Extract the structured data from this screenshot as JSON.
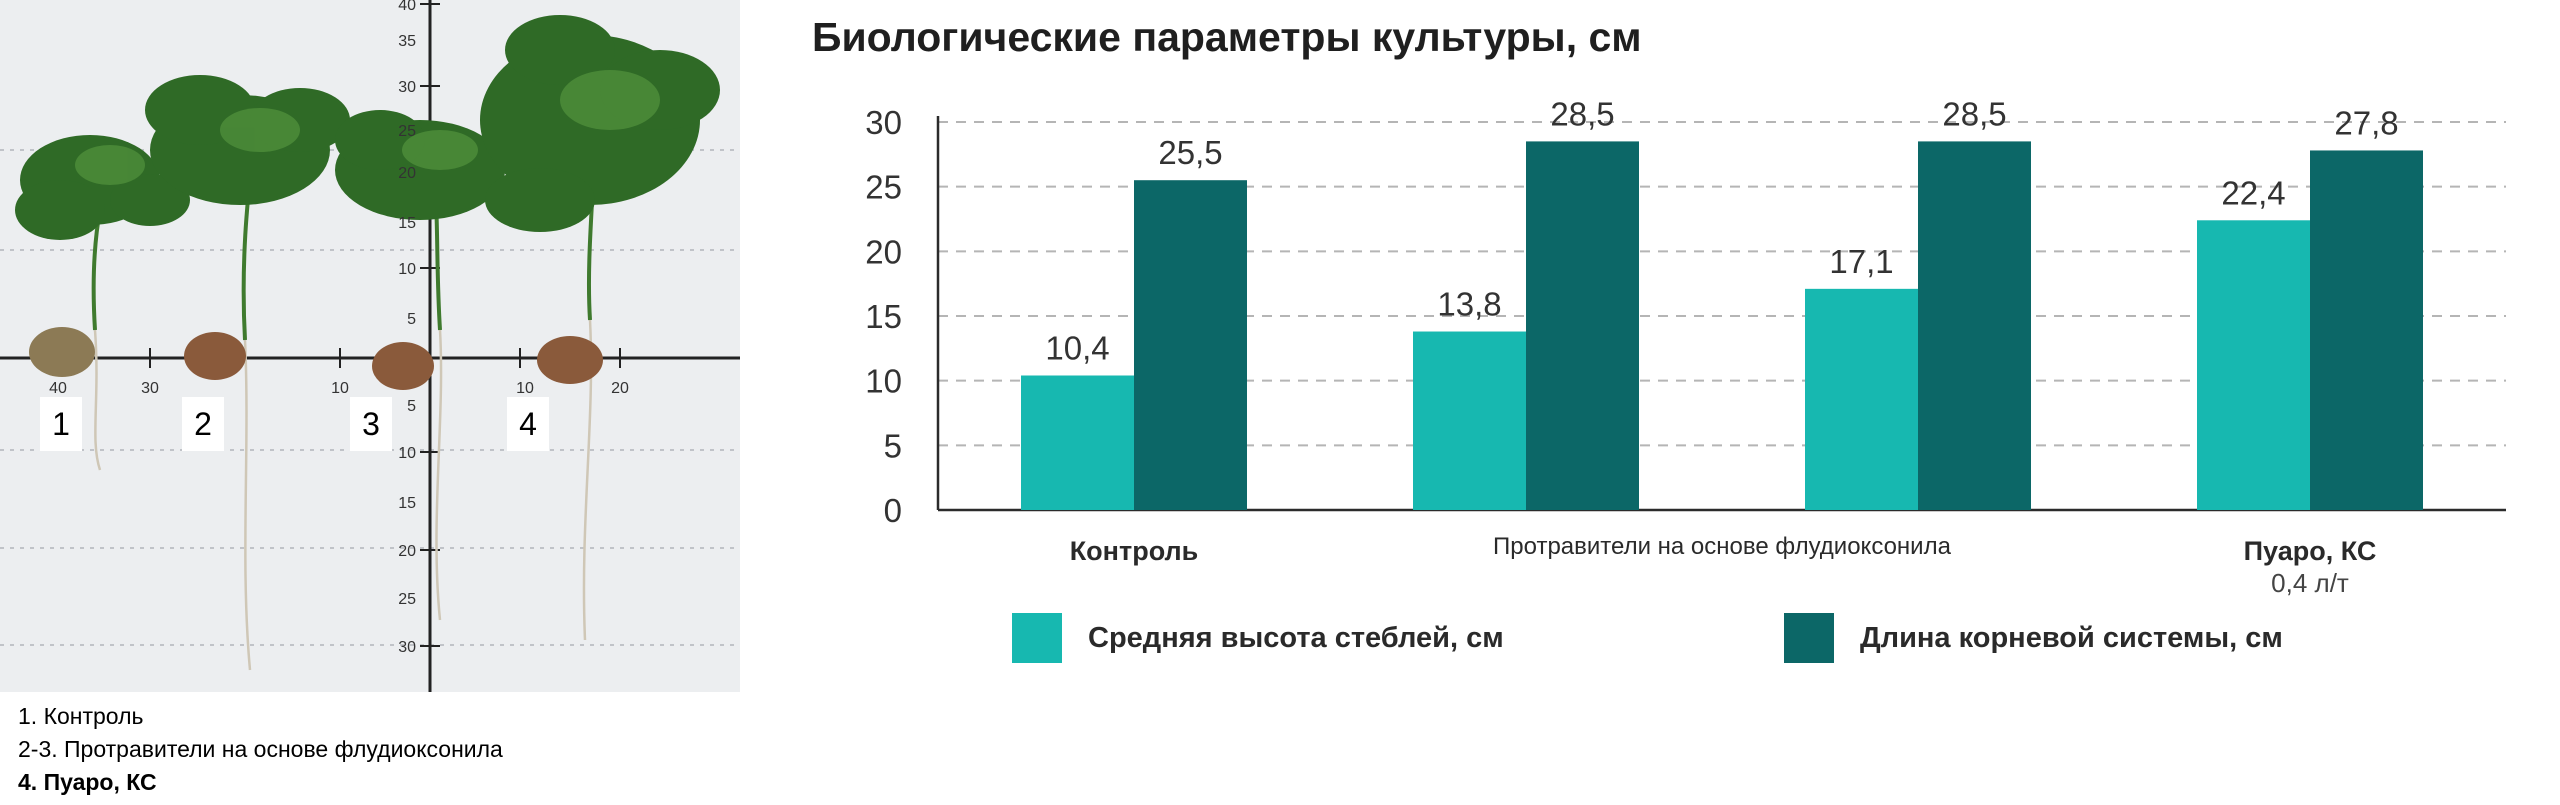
{
  "photo": {
    "plant_labels": [
      "1",
      "2",
      "3",
      "4"
    ],
    "ruler_vertical_ticks": [
      "40",
      "35",
      "30",
      "25",
      "20",
      "15",
      "10",
      "5",
      "5",
      "10",
      "15",
      "20",
      "25",
      "30"
    ],
    "ruler_horizontal_ticks": [
      "40",
      "30",
      "10",
      "10",
      "20"
    ]
  },
  "caption": {
    "line1": "1. Контроль",
    "line2": "2-3. Протравители на основе флудиоксонила",
    "line3": "4. Пуаро, КС"
  },
  "chart_data": {
    "type": "bar",
    "title": "Биологические параметры культуры, см",
    "categories": [
      "Контроль",
      "Протравители на основе флудиоксонила",
      "",
      "Пуаро, КС"
    ],
    "category_sublabels": [
      "",
      "",
      "",
      "0,4 л/т"
    ],
    "category_label_bold": [
      true,
      false,
      false,
      true
    ],
    "series": [
      {
        "name": "Средняя высота стеблей, см",
        "color": "#17b8b0",
        "values": [
          10.4,
          13.8,
          17.1,
          22.4
        ],
        "labels": [
          "10,4",
          "13,8",
          "17,1",
          "22,4"
        ]
      },
      {
        "name": "Длина корневой системы, см",
        "color": "#0c6767",
        "values": [
          25.5,
          28.5,
          28.5,
          27.8
        ],
        "labels": [
          "25,5",
          "28,5",
          "28,5",
          "27,8"
        ]
      }
    ],
    "ylim": [
      0,
      30
    ],
    "yticks": [
      0,
      5,
      10,
      15,
      20,
      25,
      30
    ],
    "grid": true,
    "legend": "bottom",
    "xlabel": "",
    "ylabel": ""
  }
}
